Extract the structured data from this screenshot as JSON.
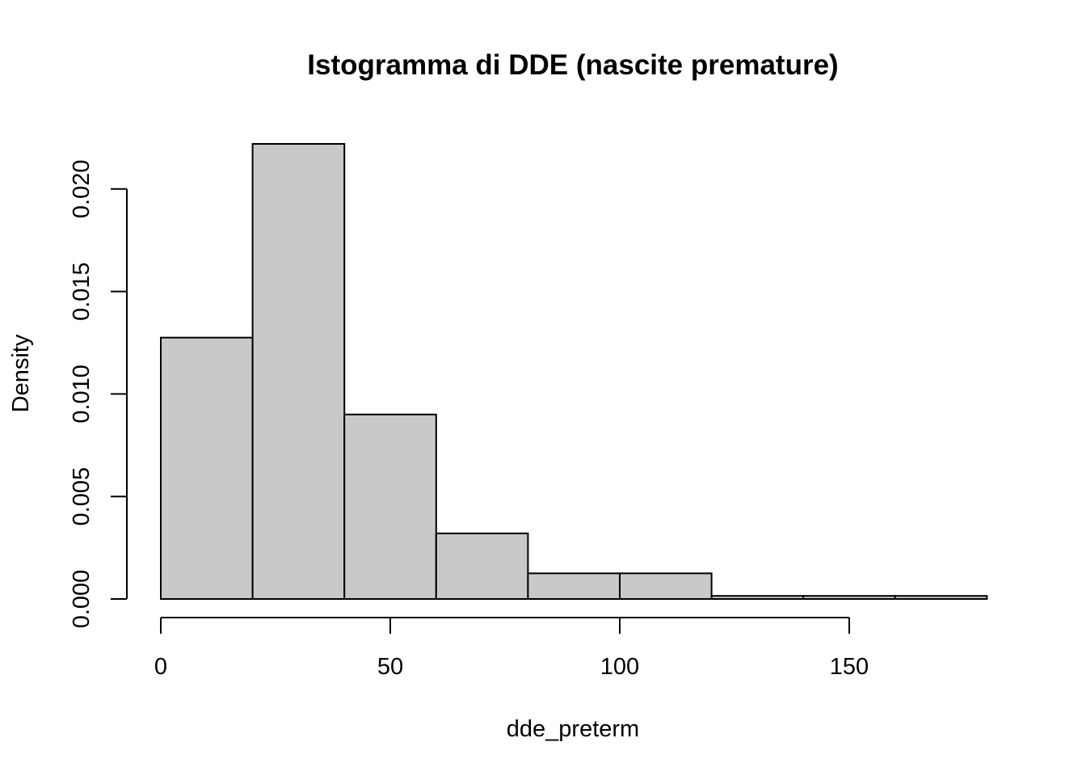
{
  "chart_data": {
    "type": "bar",
    "title": "Istogramma di DDE (nascite premature)",
    "xlabel": "dde_preterm",
    "ylabel": "Density",
    "bins": [
      {
        "start": 0,
        "end": 20,
        "density": 0.01275
      },
      {
        "start": 20,
        "end": 40,
        "density": 0.0222
      },
      {
        "start": 40,
        "end": 60,
        "density": 0.009
      },
      {
        "start": 60,
        "end": 80,
        "density": 0.0032
      },
      {
        "start": 80,
        "end": 100,
        "density": 0.00125
      },
      {
        "start": 100,
        "end": 120,
        "density": 0.00125
      },
      {
        "start": 120,
        "end": 140,
        "density": 0.00015
      },
      {
        "start": 140,
        "end": 160,
        "density": 0.00015
      },
      {
        "start": 160,
        "end": 180,
        "density": 0.00015
      }
    ],
    "xticks": [
      0,
      50,
      100,
      150
    ],
    "xtick_labels": [
      "0",
      "50",
      "100",
      "150"
    ],
    "yticks": [
      0,
      0.005,
      0.01,
      0.015,
      0.02
    ],
    "ytick_labels": [
      "0.000",
      "0.005",
      "0.010",
      "0.015",
      "0.020"
    ],
    "xlim": [
      0,
      180
    ],
    "ylim": [
      0,
      0.0222
    ],
    "grid": false,
    "bar_color": "#c9c9c9",
    "edge_color": "#000000"
  }
}
